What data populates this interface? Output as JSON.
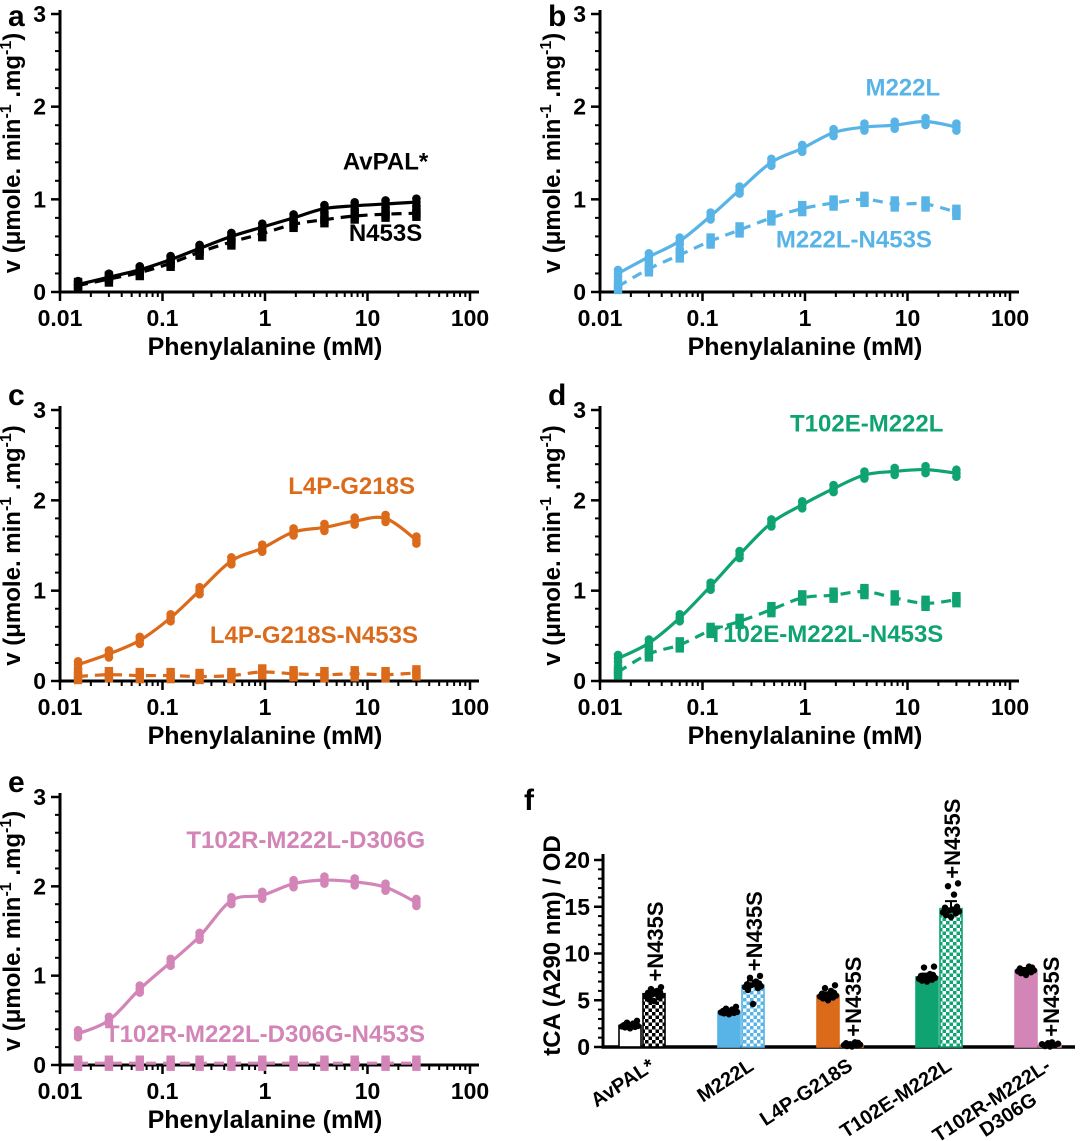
{
  "figure": {
    "background": "#ffffff",
    "axis_color": "#000000",
    "accent_colors": {
      "black": "#000000",
      "blue": "#58B4E6",
      "orange": "#DB6A1B",
      "green": "#0EA371",
      "pink": "#D285B6"
    }
  },
  "chart_data": [
    {
      "panel": "a",
      "type": "scatter",
      "xscale": "log",
      "color": "#000000",
      "xlabel": "Phenylalanine (mM)",
      "ylabel": "v (μmole. min-1 .mg-1)",
      "ylabel_parts": [
        {
          "t": "v (μmole. min"
        },
        {
          "t": "-1",
          "sup": true
        },
        {
          "t": " .mg"
        },
        {
          "t": "-1",
          "sup": true
        },
        {
          "t": ")"
        }
      ],
      "xlim": [
        0.01,
        100
      ],
      "ylim": [
        0,
        3
      ],
      "xticks": [
        0.01,
        0.1,
        1,
        10,
        100
      ],
      "xtick_labels": [
        "0.01",
        "0.1",
        "1",
        "10",
        "100"
      ],
      "yticks": [
        0,
        1,
        2,
        3
      ],
      "yminor": 0.2,
      "x": [
        0.015,
        0.03,
        0.06,
        0.12,
        0.23,
        0.47,
        0.94,
        1.9,
        3.8,
        7.5,
        15,
        30
      ],
      "series": [
        {
          "label": "AvPAL*",
          "marker": "circle",
          "line": "solid",
          "label_pos": [
            15,
            1.32
          ],
          "values": [
            0.08,
            0.16,
            0.24,
            0.35,
            0.47,
            0.6,
            0.7,
            0.8,
            0.9,
            0.93,
            0.95,
            0.97
          ]
        },
        {
          "label": "N453S",
          "marker": "square",
          "line": "dashed",
          "label_pos": [
            15,
            0.55
          ],
          "values": [
            0.07,
            0.14,
            0.21,
            0.31,
            0.43,
            0.54,
            0.63,
            0.73,
            0.78,
            0.82,
            0.84,
            0.85
          ]
        }
      ]
    },
    {
      "panel": "b",
      "type": "scatter",
      "xscale": "log",
      "color": "#58B4E6",
      "xlabel": "Phenylalanine (mM)",
      "ylabel": "v (μmole. min-1 .mg-1)",
      "ylabel_parts": [
        {
          "t": "v (μmole. min"
        },
        {
          "t": "-1",
          "sup": true
        },
        {
          "t": " .mg"
        },
        {
          "t": "-1",
          "sup": true
        },
        {
          "t": ")"
        }
      ],
      "xlim": [
        0.01,
        100
      ],
      "ylim": [
        0,
        3
      ],
      "xticks": [
        0.01,
        0.1,
        1,
        10,
        100
      ],
      "xtick_labels": [
        "0.01",
        "0.1",
        "1",
        "10",
        "100"
      ],
      "yticks": [
        0,
        1,
        2,
        3
      ],
      "yminor": 0.2,
      "x": [
        0.015,
        0.03,
        0.06,
        0.12,
        0.23,
        0.47,
        0.94,
        1.9,
        3.8,
        7.5,
        15,
        30
      ],
      "series": [
        {
          "label": "M222L",
          "marker": "circle",
          "line": "solid",
          "label_pos": [
            9,
            2.12
          ],
          "values": [
            0.2,
            0.38,
            0.55,
            0.82,
            1.1,
            1.4,
            1.55,
            1.72,
            1.78,
            1.8,
            1.84,
            1.78
          ]
        },
        {
          "label": "M222L-N453S",
          "marker": "square",
          "line": "dashed",
          "label_pos": [
            3,
            0.48
          ],
          "values": [
            0.06,
            0.25,
            0.4,
            0.55,
            0.67,
            0.8,
            0.9,
            0.96,
            1.0,
            0.95,
            0.95,
            0.86
          ]
        }
      ]
    },
    {
      "panel": "c",
      "type": "scatter",
      "xscale": "log",
      "color": "#DB6A1B",
      "xlabel": "Phenylalanine (mM)",
      "ylabel": "v (μmole. min-1 .mg-1)",
      "ylabel_parts": [
        {
          "t": "v (μmole. min"
        },
        {
          "t": "-1",
          "sup": true
        },
        {
          "t": " .mg"
        },
        {
          "t": "-1",
          "sup": true
        },
        {
          "t": ")"
        }
      ],
      "xlim": [
        0.01,
        100
      ],
      "ylim": [
        0,
        3
      ],
      "xticks": [
        0.01,
        0.1,
        1,
        10,
        100
      ],
      "xtick_labels": [
        "0.01",
        "0.1",
        "1",
        "10",
        "100"
      ],
      "yticks": [
        0,
        1,
        2,
        3
      ],
      "yminor": 0.2,
      "x": [
        0.015,
        0.03,
        0.06,
        0.12,
        0.23,
        0.47,
        0.94,
        1.9,
        3.8,
        7.5,
        15,
        30
      ],
      "series": [
        {
          "label": "L4P-G218S",
          "marker": "circle",
          "line": "solid",
          "label_pos": [
            7,
            2.07
          ],
          "values": [
            0.18,
            0.3,
            0.45,
            0.7,
            1.0,
            1.33,
            1.47,
            1.65,
            1.7,
            1.77,
            1.8,
            1.56
          ]
        },
        {
          "label": "L4P-G218S-N453S",
          "marker": "square",
          "line": "dashed",
          "label_pos": [
            3,
            0.42
          ],
          "values": [
            0.05,
            0.07,
            0.06,
            0.06,
            0.05,
            0.06,
            0.1,
            0.08,
            0.07,
            0.08,
            0.07,
            0.09
          ]
        }
      ]
    },
    {
      "panel": "d",
      "type": "scatter",
      "xscale": "log",
      "color": "#0EA371",
      "xlabel": "Phenylalanine (mM)",
      "ylabel": "v (μmole. min-1 .mg-1)",
      "ylabel_parts": [
        {
          "t": "v (μmole. min"
        },
        {
          "t": "-1",
          "sup": true
        },
        {
          "t": " .mg"
        },
        {
          "t": "-1",
          "sup": true
        },
        {
          "t": ")"
        }
      ],
      "xlim": [
        0.01,
        100
      ],
      "ylim": [
        0,
        3
      ],
      "xticks": [
        0.01,
        0.1,
        1,
        10,
        100
      ],
      "xtick_labels": [
        "0.01",
        "0.1",
        "1",
        "10",
        "100"
      ],
      "yticks": [
        0,
        1,
        2,
        3
      ],
      "yminor": 0.2,
      "x": [
        0.015,
        0.03,
        0.06,
        0.12,
        0.23,
        0.47,
        0.94,
        1.9,
        3.8,
        7.5,
        15,
        30
      ],
      "series": [
        {
          "label": "T102E-M222L",
          "marker": "circle",
          "line": "solid",
          "label_pos": [
            4,
            2.76
          ],
          "values": [
            0.25,
            0.42,
            0.7,
            1.05,
            1.4,
            1.75,
            1.95,
            2.13,
            2.28,
            2.32,
            2.34,
            2.3
          ]
        },
        {
          "label": "T102E-M222L-N453S",
          "marker": "square",
          "line": "dashed",
          "label_pos": [
            1.6,
            0.43
          ],
          "values": [
            0.1,
            0.3,
            0.4,
            0.56,
            0.66,
            0.79,
            0.92,
            0.95,
            0.99,
            0.92,
            0.86,
            0.9
          ]
        }
      ]
    },
    {
      "panel": "e",
      "type": "scatter",
      "xscale": "log",
      "color": "#D285B6",
      "xlabel": "Phenylalanine (mM)",
      "ylabel": "v (μmole. min-1 .mg-1)",
      "ylabel_parts": [
        {
          "t": "v (μmole. min"
        },
        {
          "t": "-1",
          "sup": true
        },
        {
          "t": " .mg"
        },
        {
          "t": "-1",
          "sup": true
        },
        {
          "t": ")"
        }
      ],
      "xlim": [
        0.01,
        100
      ],
      "ylim": [
        0,
        3
      ],
      "xticks": [
        0.01,
        0.1,
        1,
        10,
        100
      ],
      "xtick_labels": [
        "0.01",
        "0.1",
        "1",
        "10",
        "100"
      ],
      "yticks": [
        0,
        1,
        2,
        3
      ],
      "yminor": 0.2,
      "x": [
        0.015,
        0.03,
        0.06,
        0.12,
        0.23,
        0.47,
        0.94,
        1.9,
        3.8,
        7.5,
        15,
        30
      ],
      "series": [
        {
          "label": "T102R-M222L-D306G",
          "marker": "circle",
          "line": "solid",
          "label_pos": [
            2.5,
            2.43
          ],
          "values": [
            0.35,
            0.5,
            0.85,
            1.15,
            1.44,
            1.84,
            1.9,
            2.03,
            2.07,
            2.05,
            1.99,
            1.82
          ]
        },
        {
          "label": "T102R-M222L-D306G-N453S",
          "marker": "square",
          "line": "dashed",
          "label_pos": [
            1,
            0.26
          ],
          "values": [
            0.02,
            0.02,
            0.02,
            0.02,
            0.02,
            0.02,
            0.02,
            0.02,
            0.02,
            0.02,
            0.02,
            0.02
          ]
        }
      ]
    },
    {
      "panel": "f",
      "type": "bar",
      "ylabel": "tCA (A290 nm) / OD",
      "ylim": [
        0,
        20
      ],
      "yticks": [
        0,
        5,
        10,
        15,
        20
      ],
      "yminor": 1,
      "groups": [
        {
          "label": "AvPAL*",
          "lines": [
            "AvPAL*"
          ],
          "color": "#ffffff",
          "outline": "#000000",
          "pattern_color": "#000000",
          "bars": [
            {
              "variant": "solid",
              "value": 2.3,
              "err": 0.25,
              "dots": [
                2.0,
                2.1,
                2.15,
                2.2,
                2.25,
                2.3,
                2.3,
                2.35,
                2.4,
                2.5,
                2.6,
                2.8
              ]
            },
            {
              "variant": "checkered",
              "value": 5.7,
              "err": 0.45,
              "annotation": "+N435S",
              "annotation_y": 7.0,
              "dots": [
                4.9,
                5.1,
                5.3,
                5.4,
                5.5,
                5.6,
                5.7,
                5.8,
                5.9,
                6.0,
                6.2,
                6.4
              ]
            }
          ]
        },
        {
          "label": "M222L",
          "lines": [
            "M222L"
          ],
          "color": "#58B4E6",
          "outline": "#58B4E6",
          "pattern_color": "#58B4E6",
          "bars": [
            {
              "variant": "solid",
              "value": 3.8,
              "err": 0.2,
              "dots": [
                3.5,
                3.6,
                3.65,
                3.7,
                3.75,
                3.8,
                3.8,
                3.85,
                3.9,
                4.0,
                4.1,
                4.3
              ]
            },
            {
              "variant": "checkered",
              "value": 6.6,
              "err": 0.5,
              "annotation": "+N435S",
              "annotation_y": 8.1,
              "dots": [
                4.6,
                6.1,
                6.3,
                6.4,
                6.5,
                6.6,
                6.7,
                6.7,
                6.8,
                7.0,
                7.4,
                7.6
              ]
            }
          ]
        },
        {
          "label": "L4P-G218S",
          "lines": [
            "L4P-G218S"
          ],
          "color": "#DB6A1B",
          "outline": "#DB6A1B",
          "pattern_color": "#DB6A1B",
          "bars": [
            {
              "variant": "solid",
              "value": 5.5,
              "err": 0.35,
              "dots": [
                5.0,
                5.2,
                5.3,
                5.4,
                5.5,
                5.5,
                5.6,
                5.7,
                5.8,
                6.0,
                6.3,
                6.6
              ]
            },
            {
              "variant": "checkered",
              "value": 0.2,
              "err": 0.1,
              "annotation": "+N435S",
              "annotation_y": 1.1,
              "dots": [
                0.05,
                0.1,
                0.15,
                0.2,
                0.25,
                0.3,
                0.35,
                0.4,
                0.45,
                0.5
              ]
            }
          ]
        },
        {
          "label": "T102E-M222L",
          "lines": [
            "T102E-M222L"
          ],
          "color": "#0EA371",
          "outline": "#0EA371",
          "pattern_color": "#0EA371",
          "bars": [
            {
              "variant": "solid",
              "value": 7.5,
              "err": 0.35,
              "dots": [
                7.0,
                7.1,
                7.2,
                7.3,
                7.4,
                7.5,
                7.5,
                7.6,
                7.7,
                7.8,
                8.5,
                8.6
              ]
            },
            {
              "variant": "checkered",
              "value": 14.8,
              "err": 0.8,
              "annotation": "+N435S",
              "annotation_y": 18.0,
              "dots": [
                13.9,
                14.1,
                14.3,
                14.4,
                14.5,
                14.6,
                14.7,
                14.9,
                15.0,
                16.3,
                17.2,
                17.5
              ]
            }
          ]
        },
        {
          "label": "T102R-M222L-D306G",
          "lines": [
            "T102R-M222L-",
            "D306G"
          ],
          "color": "#D285B6",
          "outline": "#D285B6",
          "pattern_color": "#D285B6",
          "bars": [
            {
              "variant": "solid",
              "value": 8.2,
              "err": 0.25,
              "dots": [
                7.7,
                7.9,
                8.0,
                8.1,
                8.2,
                8.2,
                8.3,
                8.4,
                8.5,
                8.6
              ]
            },
            {
              "variant": "checkered",
              "value": 0.3,
              "err": 0.1,
              "annotation": "+N435S",
              "annotation_y": 1.1,
              "dots": [
                0.05,
                0.1,
                0.2,
                0.3,
                0.35,
                0.4,
                0.5
              ]
            }
          ]
        }
      ]
    }
  ]
}
